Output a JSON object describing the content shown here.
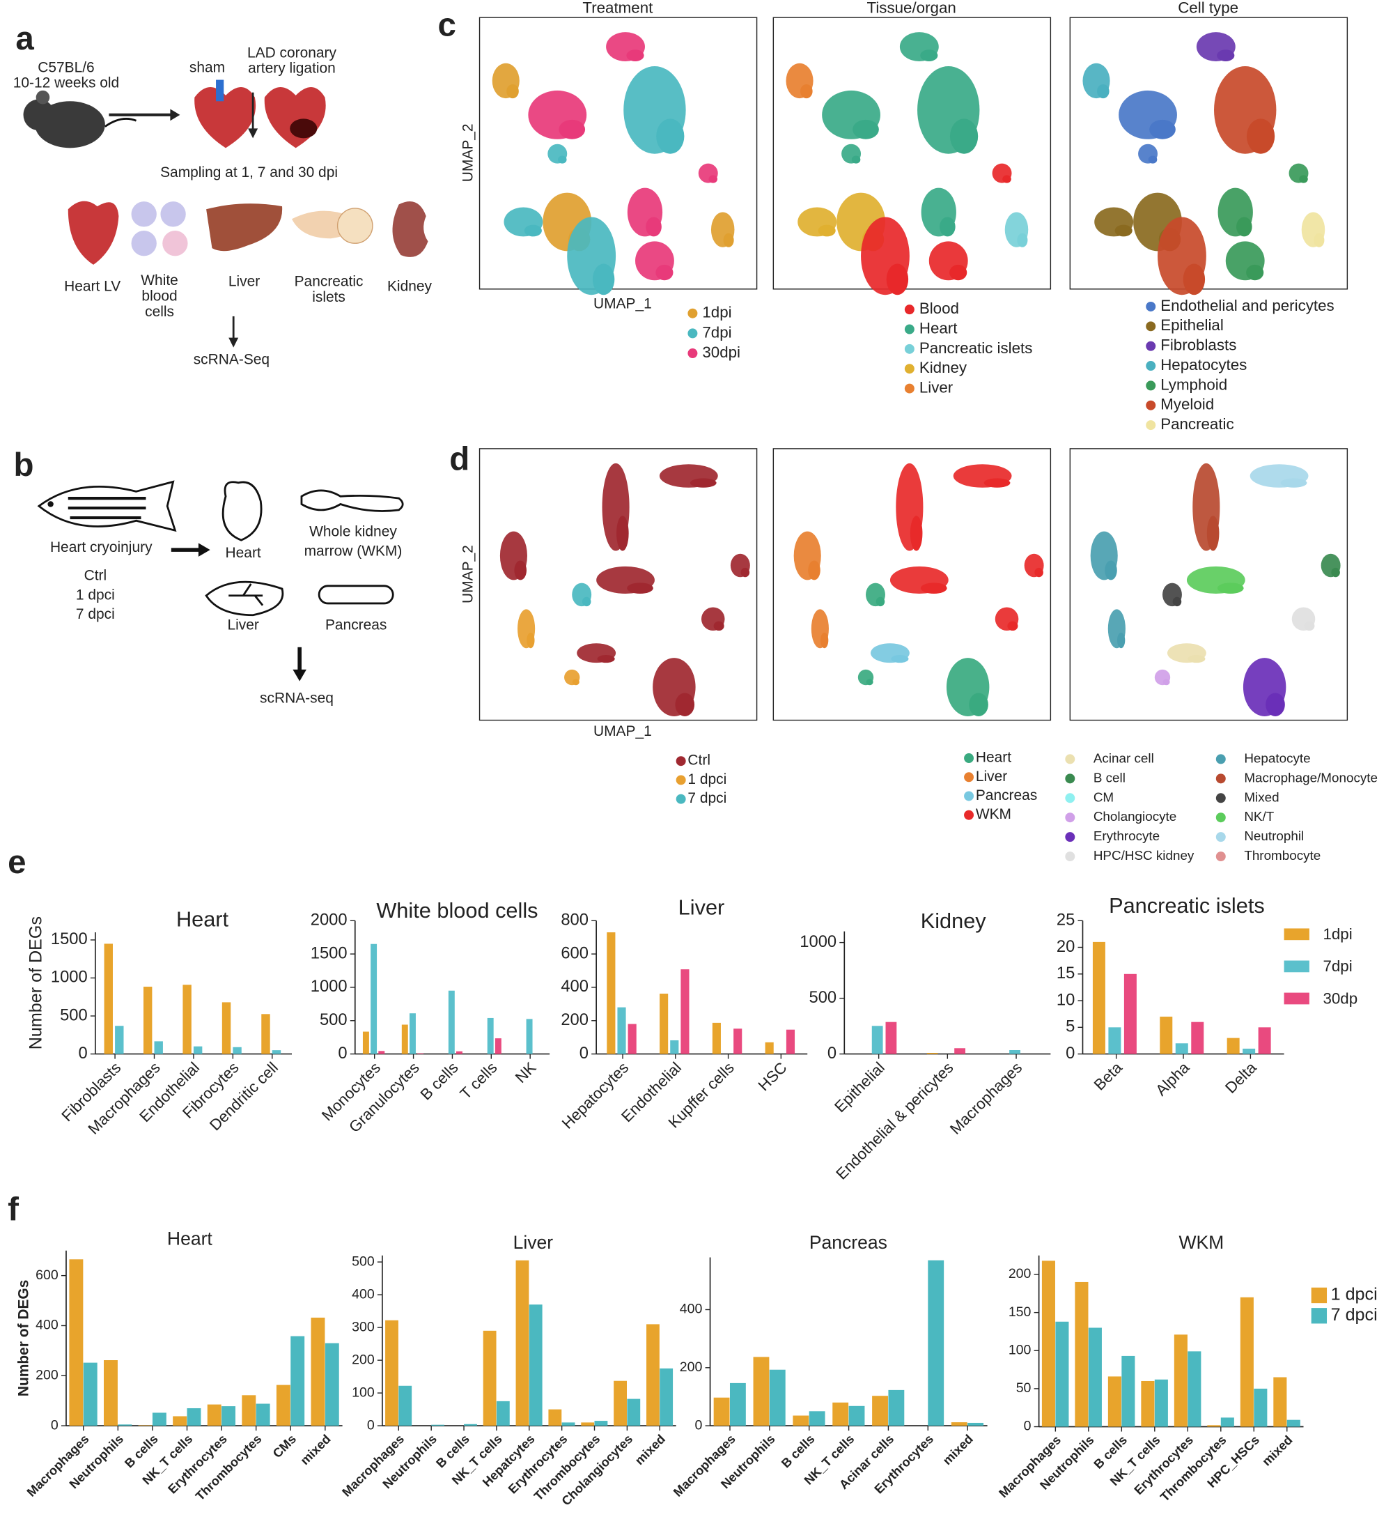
{
  "panel_labels": [
    "a",
    "b",
    "c",
    "d",
    "e",
    "f"
  ],
  "panel_a": {
    "strain": "C57BL/6",
    "age": "10-12 weeks old",
    "sham": "sham",
    "ligation": [
      "LAD coronary",
      "artery ligation"
    ],
    "sampling": "Sampling at 1, 7 and 30 dpi",
    "tissues": [
      [
        "Heart LV"
      ],
      [
        "White",
        "blood",
        "cells"
      ],
      [
        "Liver"
      ],
      [
        "Pancreatic",
        "islets"
      ],
      [
        "Kidney"
      ]
    ],
    "method": "scRNA-Seq"
  },
  "panel_b": {
    "injury": "Heart cryoinjury",
    "conditions": [
      "Ctrl",
      "1 dpci",
      "7 dpci"
    ],
    "heart": "Heart",
    "wkm": [
      "Whole kidney",
      "marrow (WKM)"
    ],
    "liver": "Liver",
    "pancreas": "Pancreas",
    "method": "scRNA-seq"
  },
  "panel_c": {
    "titles": [
      "Treatment",
      "Tissue/organ",
      "Cell type"
    ],
    "x_label": "UMAP_1",
    "y_label": "UMAP_2",
    "legends": [
      [
        {
          "name": "1dpi",
          "color": "#e0a030"
        },
        {
          "name": "7dpi",
          "color": "#4ab8c0"
        },
        {
          "name": "30dpi",
          "color": "#e83a7a"
        }
      ],
      [
        {
          "name": "Blood",
          "color": "#e8282a"
        },
        {
          "name": "Heart",
          "color": "#3aaa88"
        },
        {
          "name": "Pancreatic islets",
          "color": "#78d0d8"
        },
        {
          "name": "Kidney",
          "color": "#e0b030"
        },
        {
          "name": "Liver",
          "color": "#e88030"
        }
      ],
      [
        {
          "name": "Endothelial and pericytes",
          "color": "#4a78c8"
        },
        {
          "name": "Epithelial",
          "color": "#8a6a20"
        },
        {
          "name": "Fibroblasts",
          "color": "#6a3ab0"
        },
        {
          "name": "Hepatocytes",
          "color": "#4ab0c0"
        },
        {
          "name": "Lymphoid",
          "color": "#3a9a5a"
        },
        {
          "name": "Myeloid",
          "color": "#c84a2a"
        },
        {
          "name": "Pancreatic",
          "color": "#f0e4a0"
        }
      ]
    ]
  },
  "panel_d": {
    "x_label": "UMAP_1",
    "y_label": "UMAP_2",
    "legends": [
      [
        {
          "name": "Ctrl",
          "color": "#a02830"
        },
        {
          "name": "1 dpci",
          "color": "#e8a030"
        },
        {
          "name": "7 dpci",
          "color": "#4ab8c0"
        }
      ],
      [
        {
          "name": "Heart",
          "color": "#3aaa80"
        },
        {
          "name": "Liver",
          "color": "#e88030"
        },
        {
          "name": "Pancreas",
          "color": "#78c8e0"
        },
        {
          "name": "WKM",
          "color": "#e82a2a"
        }
      ],
      [
        {
          "name": "Acinar cell",
          "color": "#ebe0b0"
        },
        {
          "name": "B cell",
          "color": "#3a8a50"
        },
        {
          "name": "CM",
          "color": "#8ff0f0"
        },
        {
          "name": "Cholangiocyte",
          "color": "#d0a0e8"
        },
        {
          "name": "Erythrocyte",
          "color": "#6a2fb8"
        },
        {
          "name": "HPC/HSC kidney",
          "color": "#e0e0e0"
        },
        {
          "name": "Hepatocyte",
          "color": "#4a9fb0"
        },
        {
          "name": "Macrophage/Monocyte",
          "color": "#b84a30"
        },
        {
          "name": "Mixed",
          "color": "#444444"
        },
        {
          "name": "NK/T",
          "color": "#5ccc5c"
        },
        {
          "name": "Neutrophil",
          "color": "#a8d8ea"
        },
        {
          "name": "Thrombocyte",
          "color": "#e09090"
        }
      ]
    ]
  },
  "chart_data": [
    {
      "type": "bar",
      "title": "Heart",
      "y_label": "Number of DEGs",
      "categories": [
        "Fibroblasts",
        "Macrophages",
        "Endothelial",
        "Fibrocytes",
        "Dendritic cell"
      ],
      "series": [
        {
          "color": "#e8a42c",
          "values": [
            1450,
            885,
            910,
            680,
            525
          ]
        },
        {
          "color": "#5bc0cc",
          "values": [
            370,
            167,
            100,
            90,
            50
          ]
        }
      ],
      "ylim": [
        0,
        1600
      ],
      "yticks": [
        0,
        500,
        1000,
        1500
      ]
    },
    {
      "type": "bar",
      "title": "White blood cells",
      "categories": [
        "Monocytes",
        "Granulocytes",
        "B cells",
        "T cells",
        "NK"
      ],
      "series": [
        {
          "color": "#e8a42c",
          "values": [
            335,
            440,
            0,
            0,
            0
          ]
        },
        {
          "color": "#5bc0cc",
          "values": [
            1650,
            610,
            950,
            540,
            525
          ]
        },
        {
          "color": "#e94a7f",
          "values": [
            45,
            10,
            40,
            235,
            0
          ]
        }
      ],
      "ylim": [
        0,
        2000
      ],
      "yticks": [
        0,
        500,
        1000,
        1500,
        2000
      ]
    },
    {
      "type": "bar",
      "title": "Liver",
      "categories": [
        "Hepatocytes",
        "Endothelial",
        "Kupffer cells",
        "HSC"
      ],
      "series": [
        {
          "color": "#e8a42c",
          "values": [
            730,
            362,
            187,
            70
          ]
        },
        {
          "color": "#5bc0cc",
          "values": [
            280,
            82,
            0,
            0
          ]
        },
        {
          "color": "#e94a7f",
          "values": [
            180,
            508,
            152,
            146
          ]
        }
      ],
      "ylim": [
        0,
        800
      ],
      "yticks": [
        0,
        200,
        400,
        600,
        800
      ]
    },
    {
      "type": "bar",
      "title": "Kidney",
      "categories": [
        "Epithelial",
        "Endothelial & pericytes",
        "Macrophages"
      ],
      "series": [
        {
          "color": "#e8a42c",
          "values": [
            0,
            10,
            0
          ]
        },
        {
          "color": "#5bc0cc",
          "values": [
            252,
            0,
            35
          ]
        },
        {
          "color": "#e94a7f",
          "values": [
            287,
            52,
            0
          ]
        }
      ],
      "ylim": [
        0,
        1100
      ],
      "yticks": [
        0,
        500,
        1000
      ]
    },
    {
      "type": "bar",
      "title": "Pancreatic islets",
      "categories": [
        "Beta",
        "Alpha",
        "Delta"
      ],
      "series": [
        {
          "name": "1dpi",
          "color": "#e8a42c",
          "values": [
            21,
            7,
            3
          ]
        },
        {
          "name": "7dpi",
          "color": "#5bc0cc",
          "values": [
            5,
            2,
            1
          ]
        },
        {
          "name": "30dp",
          "color": "#e94a7f",
          "values": [
            15,
            6,
            5
          ]
        }
      ],
      "ylim": [
        0,
        25
      ],
      "yticks": [
        0,
        5,
        10,
        15,
        20,
        25
      ],
      "legend": "right"
    },
    {
      "type": "bar",
      "title": "Heart",
      "y_label": "Number of DEGs",
      "categories": [
        "Macrophages",
        "Neutrophils",
        "B cells",
        "NK_T cells",
        "Erythrocytes",
        "Thrombocytes",
        "CMs",
        "mixed"
      ],
      "series": [
        {
          "color": "#e8a42c",
          "values": [
            665,
            262,
            2,
            38,
            85,
            122,
            163,
            432
          ]
        },
        {
          "color": "#4bb8c0",
          "values": [
            252,
            5,
            52,
            70,
            78,
            88,
            358,
            330
          ]
        }
      ],
      "ylim": [
        0,
        700
      ],
      "yticks": [
        0,
        200,
        400,
        600
      ]
    },
    {
      "type": "bar",
      "title": "Liver",
      "categories": [
        "Macrophages",
        "Neutrophils",
        "B cells",
        "NK_T cells",
        "Hepatcytes",
        "Erythrocytes",
        "Thrombocytes",
        "Cholangiocytes",
        "mixed"
      ],
      "series": [
        {
          "color": "#e8a42c",
          "values": [
            322,
            0,
            0,
            290,
            505,
            50,
            10,
            137,
            310
          ]
        },
        {
          "color": "#4bb8c0",
          "values": [
            122,
            3,
            5,
            75,
            370,
            10,
            15,
            82,
            175
          ]
        }
      ],
      "ylim": [
        0,
        520
      ],
      "yticks": [
        0,
        100,
        200,
        300,
        400,
        500
      ]
    },
    {
      "type": "bar",
      "title": "Pancreas",
      "categories": [
        "Macrophages",
        "Neutrophils",
        "B cells",
        "NK_T cells",
        "Acinar cells",
        "Erythrocytes",
        "mixed"
      ],
      "series": [
        {
          "color": "#e8a42c",
          "values": [
            97,
            237,
            35,
            80,
            103,
            0,
            12
          ]
        },
        {
          "color": "#4bb8c0",
          "values": [
            147,
            193,
            50,
            68,
            123,
            570,
            10
          ]
        }
      ],
      "ylim": [
        0,
        580
      ],
      "yticks": [
        0,
        200,
        400
      ]
    },
    {
      "type": "bar",
      "title": "WKM",
      "categories": [
        "Macrophages",
        "Neutrophils",
        "B cells",
        "NK_T cells",
        "Erythrocytes",
        "Thrombocytes",
        "HPC_HSCs",
        "mixed"
      ],
      "series": [
        {
          "name": "1 dpci",
          "color": "#e8a42c",
          "values": [
            218,
            190,
            66,
            60,
            121,
            2,
            170,
            65
          ]
        },
        {
          "name": "7 dpci",
          "color": "#4bb8c0",
          "values": [
            138,
            130,
            93,
            62,
            99,
            12,
            50,
            9
          ]
        }
      ],
      "ylim": [
        0,
        225
      ],
      "yticks": [
        0,
        50,
        100,
        150,
        200
      ],
      "legend": "right"
    }
  ]
}
